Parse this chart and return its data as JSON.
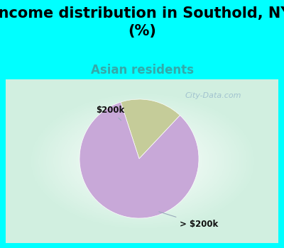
{
  "title": "Income distribution in Southold, NY\n(%)",
  "subtitle": "Asian residents",
  "title_bg_color": "#00FFFF",
  "chart_panel_bg": "#f0f8ee",
  "slices": [
    {
      "label": "$200k",
      "value": 17,
      "color": "#c5cc99"
    },
    {
      "label": "> $200k",
      "value": 83,
      "color": "#c8a8d8"
    }
  ],
  "watermark": "City-Data.com",
  "title_fontsize": 15,
  "subtitle_fontsize": 12,
  "subtitle_color": "#33aaaa",
  "label_fontsize": 8.5,
  "label_color": "#111111",
  "watermark_color": "#99bbcc",
  "watermark_fontsize": 8,
  "pie_startangle": 108,
  "annotation_line_color": "#99aabb",
  "chart_border_color": "#00FFFF",
  "chart_border_lw": 3
}
